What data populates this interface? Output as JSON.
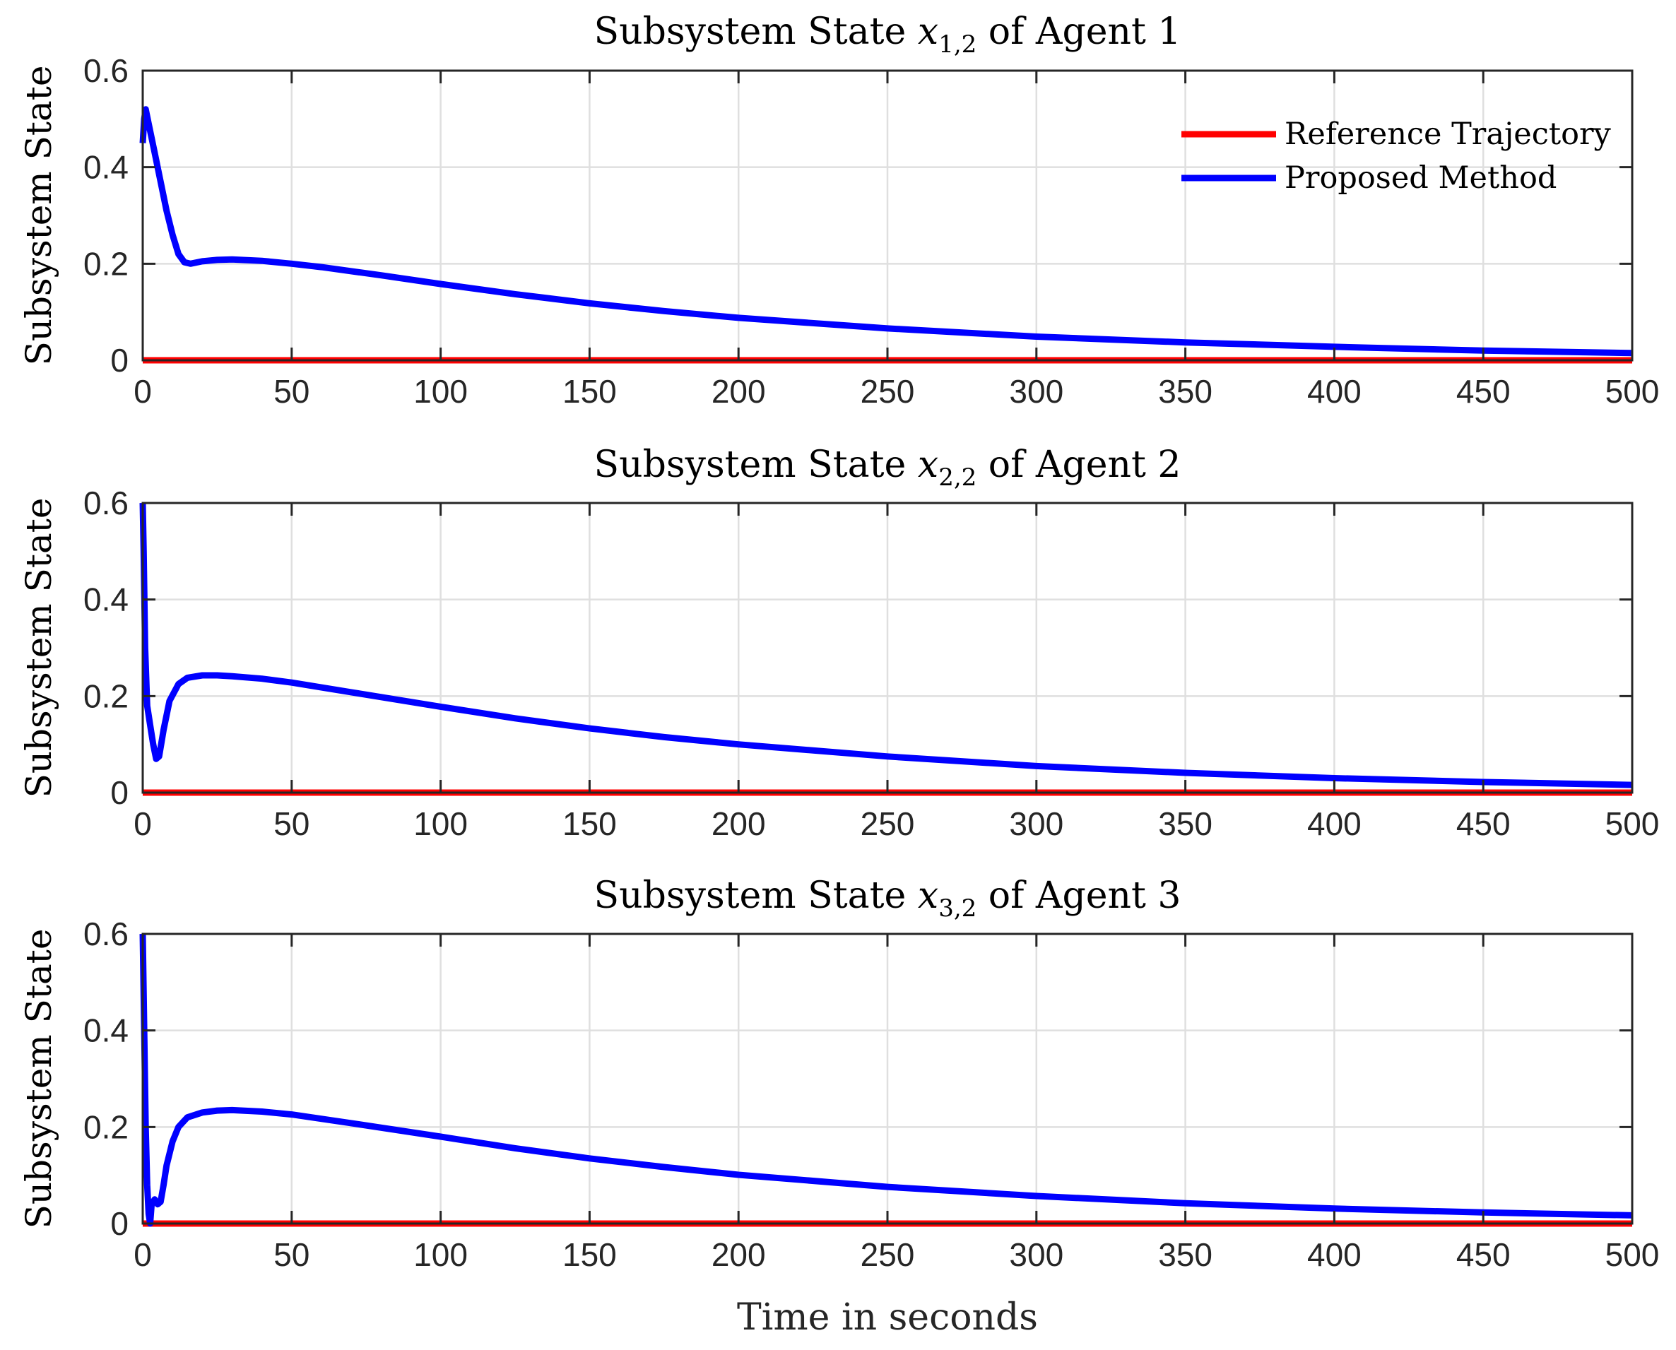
{
  "colors": {
    "reference": "#ff0000",
    "proposed": "#0000ff"
  },
  "xlabel": "Time in seconds",
  "legend": {
    "position": "top-right",
    "entries": [
      "Reference Trajectory",
      "Proposed Method"
    ]
  },
  "chart_data": [
    {
      "type": "line",
      "title": "Subsystem State x1,2 of Agent 1",
      "title_parts": {
        "pre": "Subsystem State ",
        "var": "x",
        "sub": "1,2",
        "post": " of Agent 1"
      },
      "ylabel": "Subsystem State",
      "xlim": [
        0,
        500
      ],
      "ylim": [
        0,
        0.6
      ],
      "xticks": [
        "0",
        "50",
        "100",
        "150",
        "200",
        "250",
        "300",
        "350",
        "400",
        "450",
        "500"
      ],
      "yticks": [
        "0",
        "0.2",
        "0.4",
        "0.6"
      ],
      "grid": true,
      "series": [
        {
          "name": "Reference Trajectory",
          "x": [
            0,
            500
          ],
          "y": [
            0,
            0
          ]
        },
        {
          "name": "Proposed Method",
          "x": [
            0,
            0.5,
            1,
            2,
            4,
            6,
            8,
            10,
            12,
            14,
            16,
            20,
            25,
            30,
            40,
            50,
            60,
            80,
            100,
            125,
            150,
            175,
            200,
            250,
            300,
            350,
            400,
            450,
            500
          ],
          "y": [
            0.45,
            0.5,
            0.52,
            0.49,
            0.43,
            0.37,
            0.31,
            0.26,
            0.22,
            0.203,
            0.2,
            0.205,
            0.208,
            0.209,
            0.206,
            0.2,
            0.193,
            0.176,
            0.158,
            0.137,
            0.118,
            0.102,
            0.088,
            0.066,
            0.049,
            0.037,
            0.028,
            0.02,
            0.015
          ]
        }
      ]
    },
    {
      "type": "line",
      "title": "Subsystem State x2,2 of Agent 2",
      "title_parts": {
        "pre": "Subsystem State ",
        "var": "x",
        "sub": "2,2",
        "post": " of Agent 2"
      },
      "ylabel": "Subsystem State",
      "xlim": [
        0,
        500
      ],
      "ylim": [
        0,
        0.6
      ],
      "xticks": [
        "0",
        "50",
        "100",
        "150",
        "200",
        "250",
        "300",
        "350",
        "400",
        "450",
        "500"
      ],
      "yticks": [
        "0",
        "0.2",
        "0.4",
        "0.6"
      ],
      "grid": true,
      "series": [
        {
          "name": "Reference Trajectory",
          "x": [
            0,
            500
          ],
          "y": [
            0,
            0
          ]
        },
        {
          "name": "Proposed Method",
          "x": [
            0,
            0.3,
            0.8,
            1.5,
            2.5,
            3.5,
            4.5,
            5.5,
            7,
            9,
            12,
            15,
            20,
            25,
            30,
            40,
            50,
            70,
            100,
            125,
            150,
            175,
            200,
            250,
            300,
            350,
            400,
            450,
            500
          ],
          "y": [
            0.6,
            0.5,
            0.3,
            0.18,
            0.14,
            0.1,
            0.07,
            0.075,
            0.13,
            0.19,
            0.225,
            0.238,
            0.243,
            0.243,
            0.241,
            0.236,
            0.228,
            0.208,
            0.178,
            0.154,
            0.133,
            0.115,
            0.1,
            0.075,
            0.055,
            0.041,
            0.03,
            0.022,
            0.016
          ]
        }
      ]
    },
    {
      "type": "line",
      "title": "Subsystem State x3,2 of Agent 3",
      "title_parts": {
        "pre": "Subsystem State ",
        "var": "x",
        "sub": "3,2",
        "post": " of Agent 3"
      },
      "ylabel": "Subsystem State",
      "xlim": [
        0,
        500
      ],
      "ylim": [
        0,
        0.6
      ],
      "xticks": [
        "0",
        "50",
        "100",
        "150",
        "200",
        "250",
        "300",
        "350",
        "400",
        "450",
        "500"
      ],
      "yticks": [
        "0",
        "0.2",
        "0.4",
        "0.6"
      ],
      "grid": true,
      "series": [
        {
          "name": "Reference Trajectory",
          "x": [
            0,
            500
          ],
          "y": [
            0,
            0
          ]
        },
        {
          "name": "Proposed Method",
          "x": [
            0,
            0.5,
            1,
            1.5,
            2,
            2.5,
            3,
            4,
            5,
            6,
            7,
            8,
            10,
            12,
            15,
            20,
            25,
            30,
            40,
            50,
            70,
            100,
            125,
            150,
            175,
            200,
            250,
            300,
            350,
            400,
            450,
            500
          ],
          "y": [
            0.6,
            0.4,
            0.2,
            0.08,
            0.02,
            0.0,
            0.04,
            0.05,
            0.04,
            0.045,
            0.08,
            0.12,
            0.17,
            0.2,
            0.22,
            0.23,
            0.234,
            0.235,
            0.232,
            0.226,
            0.208,
            0.18,
            0.156,
            0.135,
            0.117,
            0.101,
            0.076,
            0.057,
            0.042,
            0.031,
            0.023,
            0.017
          ]
        }
      ]
    }
  ]
}
